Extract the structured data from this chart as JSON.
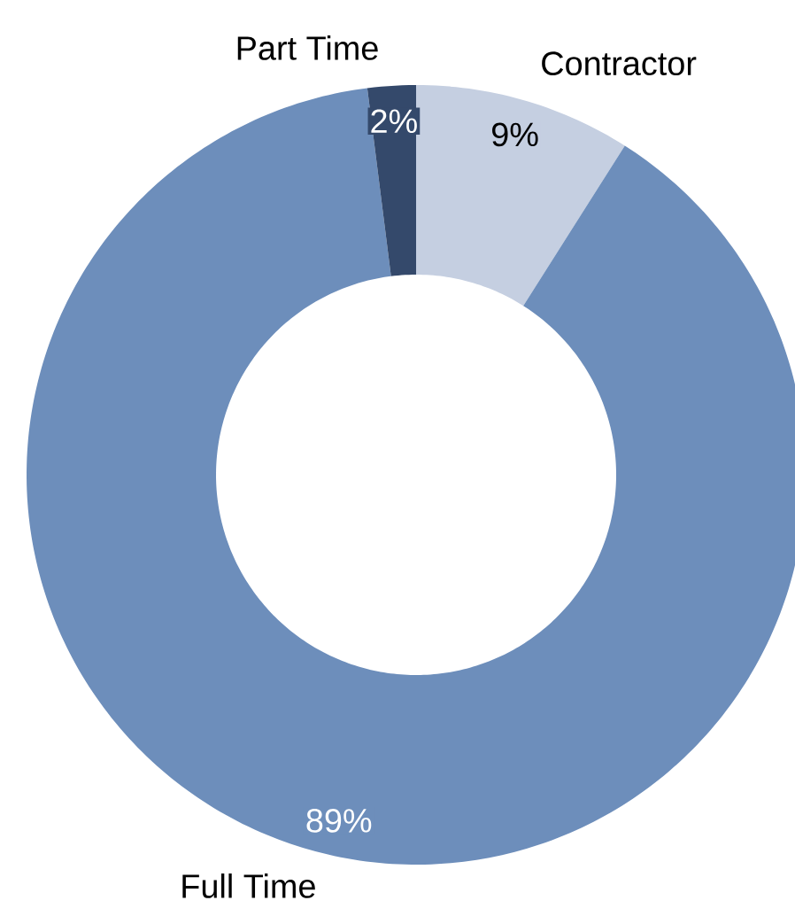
{
  "chart_data": {
    "type": "donut",
    "categories": [
      "Contractor",
      "Full Time",
      "Part Time"
    ],
    "values": [
      9,
      89,
      2
    ],
    "colors": [
      "#c5cfe1",
      "#6d8ebb",
      "#34496b"
    ],
    "value_labels": [
      "9%",
      "89%",
      "2%"
    ]
  }
}
